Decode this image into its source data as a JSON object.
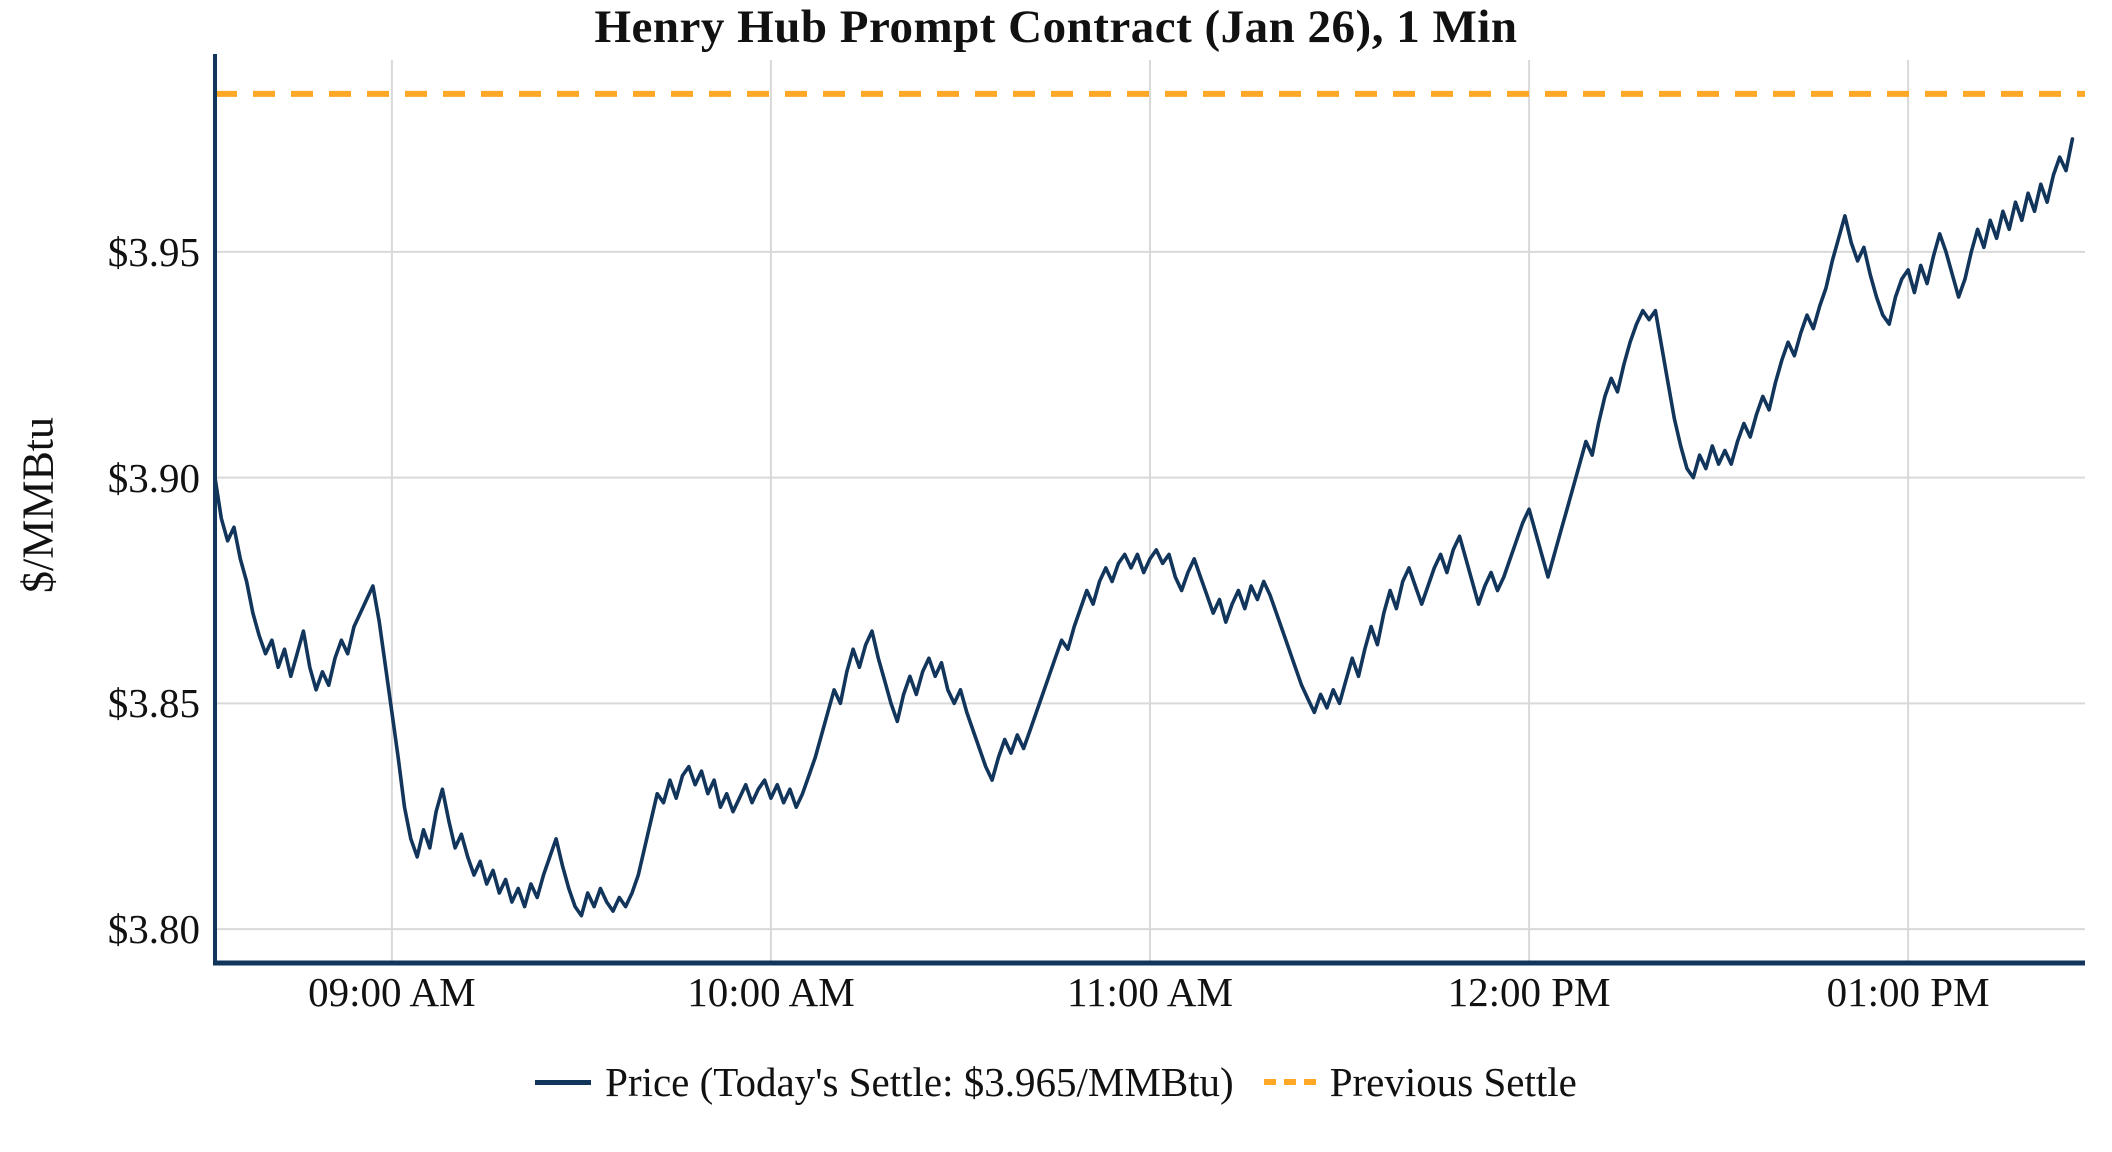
{
  "title": "Henry Hub Prompt Contract (Jan 26), 1 Min",
  "legend": {
    "price_label": "Price (Today's Settle: $3.965/MMBtu)",
    "settle_label": "Previous Settle"
  },
  "colors": {
    "price": "#12355B",
    "settle": "#FFA726",
    "grid": "#d9d9d9",
    "axis": "#12355B",
    "text": "#111111",
    "background": "#ffffff"
  },
  "chart_data": {
    "type": "line",
    "title": "Henry Hub Prompt Contract (Jan 26), 1 Min",
    "xlabel": "",
    "ylabel": "$/MMBtu",
    "grid": true,
    "legend_position": "bottom",
    "x_units": "minutes (0 = chart start, about 08:32 AM)",
    "xlim": [
      0,
      296
    ],
    "ylim": [
      3.7925,
      3.9925
    ],
    "x_ticks": [
      {
        "t": 28,
        "label": "09:00 AM"
      },
      {
        "t": 88,
        "label": "10:00 AM"
      },
      {
        "t": 148,
        "label": "11:00 AM"
      },
      {
        "t": 208,
        "label": "12:00 PM"
      },
      {
        "t": 268,
        "label": "01:00 PM"
      }
    ],
    "y_ticks": [
      {
        "v": 3.8,
        "label": "$3.80"
      },
      {
        "v": 3.85,
        "label": "$3.85"
      },
      {
        "v": 3.9,
        "label": "$3.90"
      },
      {
        "v": 3.95,
        "label": "$3.95"
      }
    ],
    "todays_settle": 3.965,
    "reference_lines": [
      {
        "name": "Previous Settle",
        "value": 3.985,
        "style": "dashed",
        "color": "#FFA726"
      }
    ],
    "series": [
      {
        "name": "Price (Today's Settle: $3.965/MMBtu)",
        "color": "#12355B",
        "points": [
          [
            0,
            3.9
          ],
          [
            1,
            3.891
          ],
          [
            2,
            3.886
          ],
          [
            3,
            3.889
          ],
          [
            4,
            3.882
          ],
          [
            5,
            3.877
          ],
          [
            6,
            3.87
          ],
          [
            7,
            3.865
          ],
          [
            8,
            3.861
          ],
          [
            9,
            3.864
          ],
          [
            10,
            3.858
          ],
          [
            11,
            3.862
          ],
          [
            12,
            3.856
          ],
          [
            13,
            3.861
          ],
          [
            14,
            3.866
          ],
          [
            15,
            3.858
          ],
          [
            16,
            3.853
          ],
          [
            17,
            3.857
          ],
          [
            18,
            3.854
          ],
          [
            19,
            3.86
          ],
          [
            20,
            3.864
          ],
          [
            21,
            3.861
          ],
          [
            22,
            3.867
          ],
          [
            23,
            3.87
          ],
          [
            24,
            3.873
          ],
          [
            25,
            3.876
          ],
          [
            26,
            3.868
          ],
          [
            27,
            3.858
          ],
          [
            28,
            3.848
          ],
          [
            29,
            3.838
          ],
          [
            30,
            3.827
          ],
          [
            31,
            3.82
          ],
          [
            32,
            3.816
          ],
          [
            33,
            3.822
          ],
          [
            34,
            3.818
          ],
          [
            35,
            3.826
          ],
          [
            36,
            3.831
          ],
          [
            37,
            3.824
          ],
          [
            38,
            3.818
          ],
          [
            39,
            3.821
          ],
          [
            40,
            3.816
          ],
          [
            41,
            3.812
          ],
          [
            42,
            3.815
          ],
          [
            43,
            3.81
          ],
          [
            44,
            3.813
          ],
          [
            45,
            3.808
          ],
          [
            46,
            3.811
          ],
          [
            47,
            3.806
          ],
          [
            48,
            3.809
          ],
          [
            49,
            3.805
          ],
          [
            50,
            3.81
          ],
          [
            51,
            3.807
          ],
          [
            52,
            3.812
          ],
          [
            53,
            3.816
          ],
          [
            54,
            3.82
          ],
          [
            55,
            3.814
          ],
          [
            56,
            3.809
          ],
          [
            57,
            3.805
          ],
          [
            58,
            3.803
          ],
          [
            59,
            3.808
          ],
          [
            60,
            3.805
          ],
          [
            61,
            3.809
          ],
          [
            62,
            3.806
          ],
          [
            63,
            3.804
          ],
          [
            64,
            3.807
          ],
          [
            65,
            3.805
          ],
          [
            66,
            3.808
          ],
          [
            67,
            3.812
          ],
          [
            68,
            3.818
          ],
          [
            69,
            3.824
          ],
          [
            70,
            3.83
          ],
          [
            71,
            3.828
          ],
          [
            72,
            3.833
          ],
          [
            73,
            3.829
          ],
          [
            74,
            3.834
          ],
          [
            75,
            3.836
          ],
          [
            76,
            3.832
          ],
          [
            77,
            3.835
          ],
          [
            78,
            3.83
          ],
          [
            79,
            3.833
          ],
          [
            80,
            3.827
          ],
          [
            81,
            3.83
          ],
          [
            82,
            3.826
          ],
          [
            83,
            3.829
          ],
          [
            84,
            3.832
          ],
          [
            85,
            3.828
          ],
          [
            86,
            3.831
          ],
          [
            87,
            3.833
          ],
          [
            88,
            3.829
          ],
          [
            89,
            3.832
          ],
          [
            90,
            3.828
          ],
          [
            91,
            3.831
          ],
          [
            92,
            3.827
          ],
          [
            93,
            3.83
          ],
          [
            94,
            3.834
          ],
          [
            95,
            3.838
          ],
          [
            96,
            3.843
          ],
          [
            97,
            3.848
          ],
          [
            98,
            3.853
          ],
          [
            99,
            3.85
          ],
          [
            100,
            3.857
          ],
          [
            101,
            3.862
          ],
          [
            102,
            3.858
          ],
          [
            103,
            3.863
          ],
          [
            104,
            3.866
          ],
          [
            105,
            3.86
          ],
          [
            106,
            3.855
          ],
          [
            107,
            3.85
          ],
          [
            108,
            3.846
          ],
          [
            109,
            3.852
          ],
          [
            110,
            3.856
          ],
          [
            111,
            3.852
          ],
          [
            112,
            3.857
          ],
          [
            113,
            3.86
          ],
          [
            114,
            3.856
          ],
          [
            115,
            3.859
          ],
          [
            116,
            3.853
          ],
          [
            117,
            3.85
          ],
          [
            118,
            3.853
          ],
          [
            119,
            3.848
          ],
          [
            120,
            3.844
          ],
          [
            121,
            3.84
          ],
          [
            122,
            3.836
          ],
          [
            123,
            3.833
          ],
          [
            124,
            3.838
          ],
          [
            125,
            3.842
          ],
          [
            126,
            3.839
          ],
          [
            127,
            3.843
          ],
          [
            128,
            3.84
          ],
          [
            129,
            3.844
          ],
          [
            130,
            3.848
          ],
          [
            131,
            3.852
          ],
          [
            132,
            3.856
          ],
          [
            133,
            3.86
          ],
          [
            134,
            3.864
          ],
          [
            135,
            3.862
          ],
          [
            136,
            3.867
          ],
          [
            137,
            3.871
          ],
          [
            138,
            3.875
          ],
          [
            139,
            3.872
          ],
          [
            140,
            3.877
          ],
          [
            141,
            3.88
          ],
          [
            142,
            3.877
          ],
          [
            143,
            3.881
          ],
          [
            144,
            3.883
          ],
          [
            145,
            3.88
          ],
          [
            146,
            3.883
          ],
          [
            147,
            3.879
          ],
          [
            148,
            3.882
          ],
          [
            149,
            3.884
          ],
          [
            150,
            3.881
          ],
          [
            151,
            3.883
          ],
          [
            152,
            3.878
          ],
          [
            153,
            3.875
          ],
          [
            154,
            3.879
          ],
          [
            155,
            3.882
          ],
          [
            156,
            3.878
          ],
          [
            157,
            3.874
          ],
          [
            158,
            3.87
          ],
          [
            159,
            3.873
          ],
          [
            160,
            3.868
          ],
          [
            161,
            3.872
          ],
          [
            162,
            3.875
          ],
          [
            163,
            3.871
          ],
          [
            164,
            3.876
          ],
          [
            165,
            3.873
          ],
          [
            166,
            3.877
          ],
          [
            167,
            3.874
          ],
          [
            168,
            3.87
          ],
          [
            169,
            3.866
          ],
          [
            170,
            3.862
          ],
          [
            171,
            3.858
          ],
          [
            172,
            3.854
          ],
          [
            173,
            3.851
          ],
          [
            174,
            3.848
          ],
          [
            175,
            3.852
          ],
          [
            176,
            3.849
          ],
          [
            177,
            3.853
          ],
          [
            178,
            3.85
          ],
          [
            179,
            3.855
          ],
          [
            180,
            3.86
          ],
          [
            181,
            3.856
          ],
          [
            182,
            3.862
          ],
          [
            183,
            3.867
          ],
          [
            184,
            3.863
          ],
          [
            185,
            3.87
          ],
          [
            186,
            3.875
          ],
          [
            187,
            3.871
          ],
          [
            188,
            3.877
          ],
          [
            189,
            3.88
          ],
          [
            190,
            3.876
          ],
          [
            191,
            3.872
          ],
          [
            192,
            3.876
          ],
          [
            193,
            3.88
          ],
          [
            194,
            3.883
          ],
          [
            195,
            3.879
          ],
          [
            196,
            3.884
          ],
          [
            197,
            3.887
          ],
          [
            198,
            3.882
          ],
          [
            199,
            3.877
          ],
          [
            200,
            3.872
          ],
          [
            201,
            3.876
          ],
          [
            202,
            3.879
          ],
          [
            203,
            3.875
          ],
          [
            204,
            3.878
          ],
          [
            205,
            3.882
          ],
          [
            206,
            3.886
          ],
          [
            207,
            3.89
          ],
          [
            208,
            3.893
          ],
          [
            209,
            3.888
          ],
          [
            210,
            3.883
          ],
          [
            211,
            3.878
          ],
          [
            212,
            3.883
          ],
          [
            213,
            3.888
          ],
          [
            214,
            3.893
          ],
          [
            215,
            3.898
          ],
          [
            216,
            3.903
          ],
          [
            217,
            3.908
          ],
          [
            218,
            3.905
          ],
          [
            219,
            3.912
          ],
          [
            220,
            3.918
          ],
          [
            221,
            3.922
          ],
          [
            222,
            3.919
          ],
          [
            223,
            3.925
          ],
          [
            224,
            3.93
          ],
          [
            225,
            3.934
          ],
          [
            226,
            3.937
          ],
          [
            227,
            3.935
          ],
          [
            228,
            3.937
          ],
          [
            229,
            3.929
          ],
          [
            230,
            3.921
          ],
          [
            231,
            3.913
          ],
          [
            232,
            3.907
          ],
          [
            233,
            3.902
          ],
          [
            234,
            3.9
          ],
          [
            235,
            3.905
          ],
          [
            236,
            3.902
          ],
          [
            237,
            3.907
          ],
          [
            238,
            3.903
          ],
          [
            239,
            3.906
          ],
          [
            240,
            3.903
          ],
          [
            241,
            3.908
          ],
          [
            242,
            3.912
          ],
          [
            243,
            3.909
          ],
          [
            244,
            3.914
          ],
          [
            245,
            3.918
          ],
          [
            246,
            3.915
          ],
          [
            247,
            3.921
          ],
          [
            248,
            3.926
          ],
          [
            249,
            3.93
          ],
          [
            250,
            3.927
          ],
          [
            251,
            3.932
          ],
          [
            252,
            3.936
          ],
          [
            253,
            3.933
          ],
          [
            254,
            3.938
          ],
          [
            255,
            3.942
          ],
          [
            256,
            3.948
          ],
          [
            257,
            3.953
          ],
          [
            258,
            3.958
          ],
          [
            259,
            3.952
          ],
          [
            260,
            3.948
          ],
          [
            261,
            3.951
          ],
          [
            262,
            3.945
          ],
          [
            263,
            3.94
          ],
          [
            264,
            3.936
          ],
          [
            265,
            3.934
          ],
          [
            266,
            3.94
          ],
          [
            267,
            3.944
          ],
          [
            268,
            3.946
          ],
          [
            269,
            3.941
          ],
          [
            270,
            3.947
          ],
          [
            271,
            3.943
          ],
          [
            272,
            3.949
          ],
          [
            273,
            3.954
          ],
          [
            274,
            3.95
          ],
          [
            275,
            3.945
          ],
          [
            276,
            3.94
          ],
          [
            277,
            3.944
          ],
          [
            278,
            3.95
          ],
          [
            279,
            3.955
          ],
          [
            280,
            3.951
          ],
          [
            281,
            3.957
          ],
          [
            282,
            3.953
          ],
          [
            283,
            3.959
          ],
          [
            284,
            3.955
          ],
          [
            285,
            3.961
          ],
          [
            286,
            3.957
          ],
          [
            287,
            3.963
          ],
          [
            288,
            3.959
          ],
          [
            289,
            3.965
          ],
          [
            290,
            3.961
          ],
          [
            291,
            3.967
          ],
          [
            292,
            3.971
          ],
          [
            293,
            3.968
          ],
          [
            294,
            3.975
          ]
        ]
      }
    ]
  }
}
